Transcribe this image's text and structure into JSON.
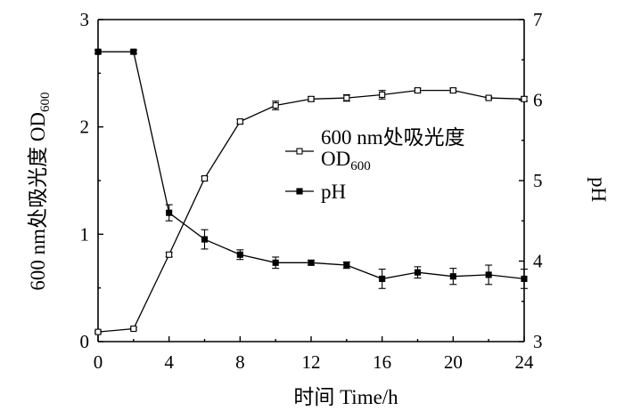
{
  "chart_data": {
    "type": "line",
    "x_axis": {
      "label": "时间 Time/h",
      "min": 0,
      "max": 24,
      "ticks": [
        0,
        4,
        8,
        12,
        16,
        20,
        24
      ],
      "tick_labels": [
        "0",
        "4",
        "8",
        "12",
        "16",
        "20",
        "24"
      ]
    },
    "y_axis_left": {
      "label": "600 nm处吸光度 OD600",
      "min": 0,
      "max": 3,
      "ticks": [
        0,
        1,
        2,
        3
      ],
      "tick_labels": [
        "0",
        "1",
        "2",
        "3"
      ]
    },
    "y_axis_right": {
      "label": "pH",
      "min": 3,
      "max": 7,
      "ticks": [
        3,
        4,
        5,
        6,
        7
      ],
      "tick_labels": [
        "3",
        "4",
        "5",
        "6",
        "7"
      ]
    },
    "series": [
      {
        "name": "600 nm处吸光度 OD600",
        "legend_line1": "600 nm处吸光度",
        "legend_line2": "OD600",
        "axis": "left",
        "marker": "open-square",
        "x": [
          0,
          2,
          4,
          6,
          8,
          10,
          12,
          14,
          16,
          18,
          20,
          22,
          24
        ],
        "y": [
          0.09,
          0.12,
          0.81,
          1.52,
          2.05,
          2.2,
          2.26,
          2.27,
          2.3,
          2.34,
          2.34,
          2.27,
          2.26
        ],
        "err": [
          0.01,
          0.01,
          0.02,
          0.02,
          0.02,
          0.04,
          0.02,
          0.03,
          0.04,
          0.02,
          0.02,
          0.01,
          0.02
        ]
      },
      {
        "name": "pH",
        "legend_line1": "pH",
        "axis": "right",
        "marker": "filled-square",
        "x": [
          0,
          2,
          4,
          6,
          8,
          10,
          12,
          14,
          16,
          18,
          20,
          22,
          24
        ],
        "y": [
          6.6,
          6.6,
          4.6,
          4.27,
          4.08,
          3.98,
          3.98,
          3.95,
          3.78,
          3.86,
          3.81,
          3.83,
          3.78
        ],
        "err": [
          0.02,
          0.02,
          0.1,
          0.12,
          0.06,
          0.07,
          0.03,
          0.04,
          0.12,
          0.07,
          0.1,
          0.12,
          0.12
        ]
      }
    ],
    "grid": false,
    "legend_position": "center-right"
  }
}
